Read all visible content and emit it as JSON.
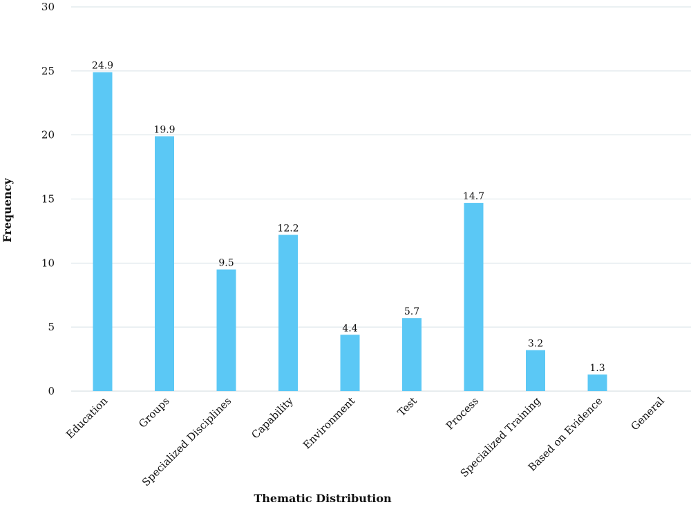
{
  "chart_data": {
    "type": "bar",
    "categories": [
      "Education",
      "Groups",
      "Specialized Disciplines",
      "Capability",
      "Environment",
      "Test",
      "Process",
      "Specialized Training",
      "Based on Evidence",
      "General"
    ],
    "values": [
      24.9,
      19.9,
      9.5,
      12.2,
      4.4,
      5.7,
      14.7,
      3.2,
      1.3,
      0
    ],
    "data_labels": [
      "24.9",
      "19.9",
      "9.5",
      "12.2",
      "4.4",
      "5.7",
      "14.7",
      "3.2",
      "1.3",
      ""
    ],
    "yticks": [
      "0",
      "5",
      "10",
      "15",
      "20",
      "25",
      "30"
    ],
    "ylim": [
      0,
      30
    ],
    "xlabel": "Thematic Distribution",
    "ylabel": "Frequency",
    "title": "",
    "grid": true,
    "bar_color": "#5bc8f5",
    "grid_color": "#d6e1e6"
  }
}
